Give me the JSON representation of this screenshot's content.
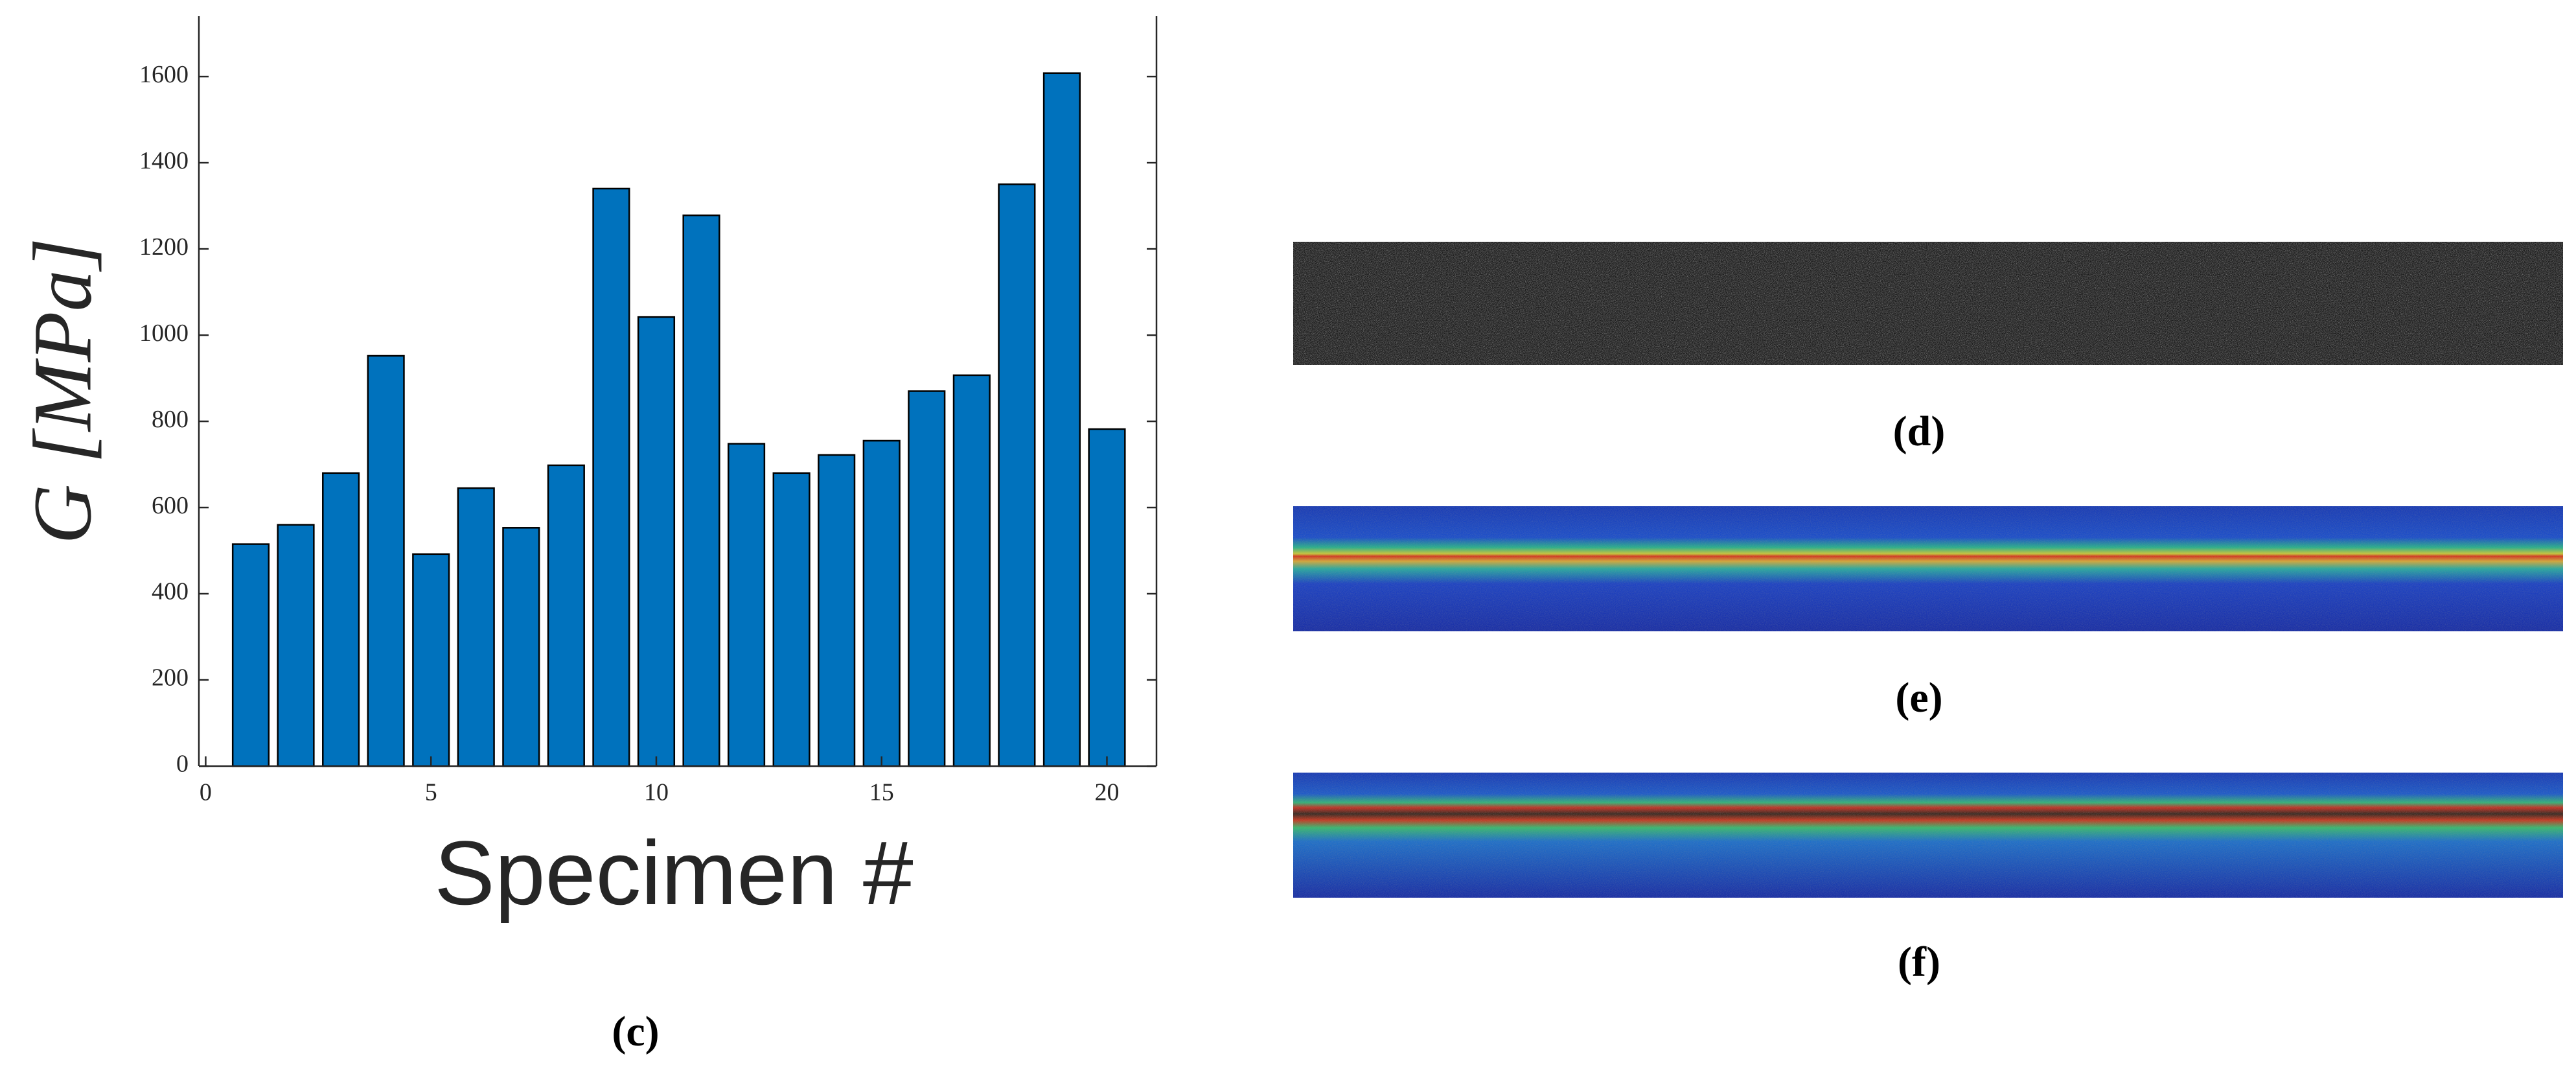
{
  "chart_data": {
    "type": "bar",
    "x_label": "Specimen #",
    "y_label": "G [MPa]",
    "x": [
      1,
      2,
      3,
      4,
      5,
      6,
      7,
      8,
      9,
      10,
      11,
      12,
      13,
      14,
      15,
      16,
      17,
      18,
      19,
      20
    ],
    "values": [
      515,
      560,
      680,
      952,
      492,
      645,
      553,
      698,
      1340,
      1042,
      1278,
      748,
      680,
      722,
      755,
      870,
      907,
      1350,
      1608,
      782
    ],
    "color": "#0072bd",
    "xlim": [
      -0.15,
      21.1
    ],
    "xticks": [
      0,
      5,
      10,
      15,
      20
    ],
    "ylim": [
      0,
      1740
    ],
    "yticks": [
      0,
      200,
      400,
      600,
      800,
      1000,
      1200,
      1400,
      1600
    ],
    "grid": false
  },
  "figure_labels": [
    "(c)",
    "(d)",
    "(e)",
    "(f)"
  ]
}
